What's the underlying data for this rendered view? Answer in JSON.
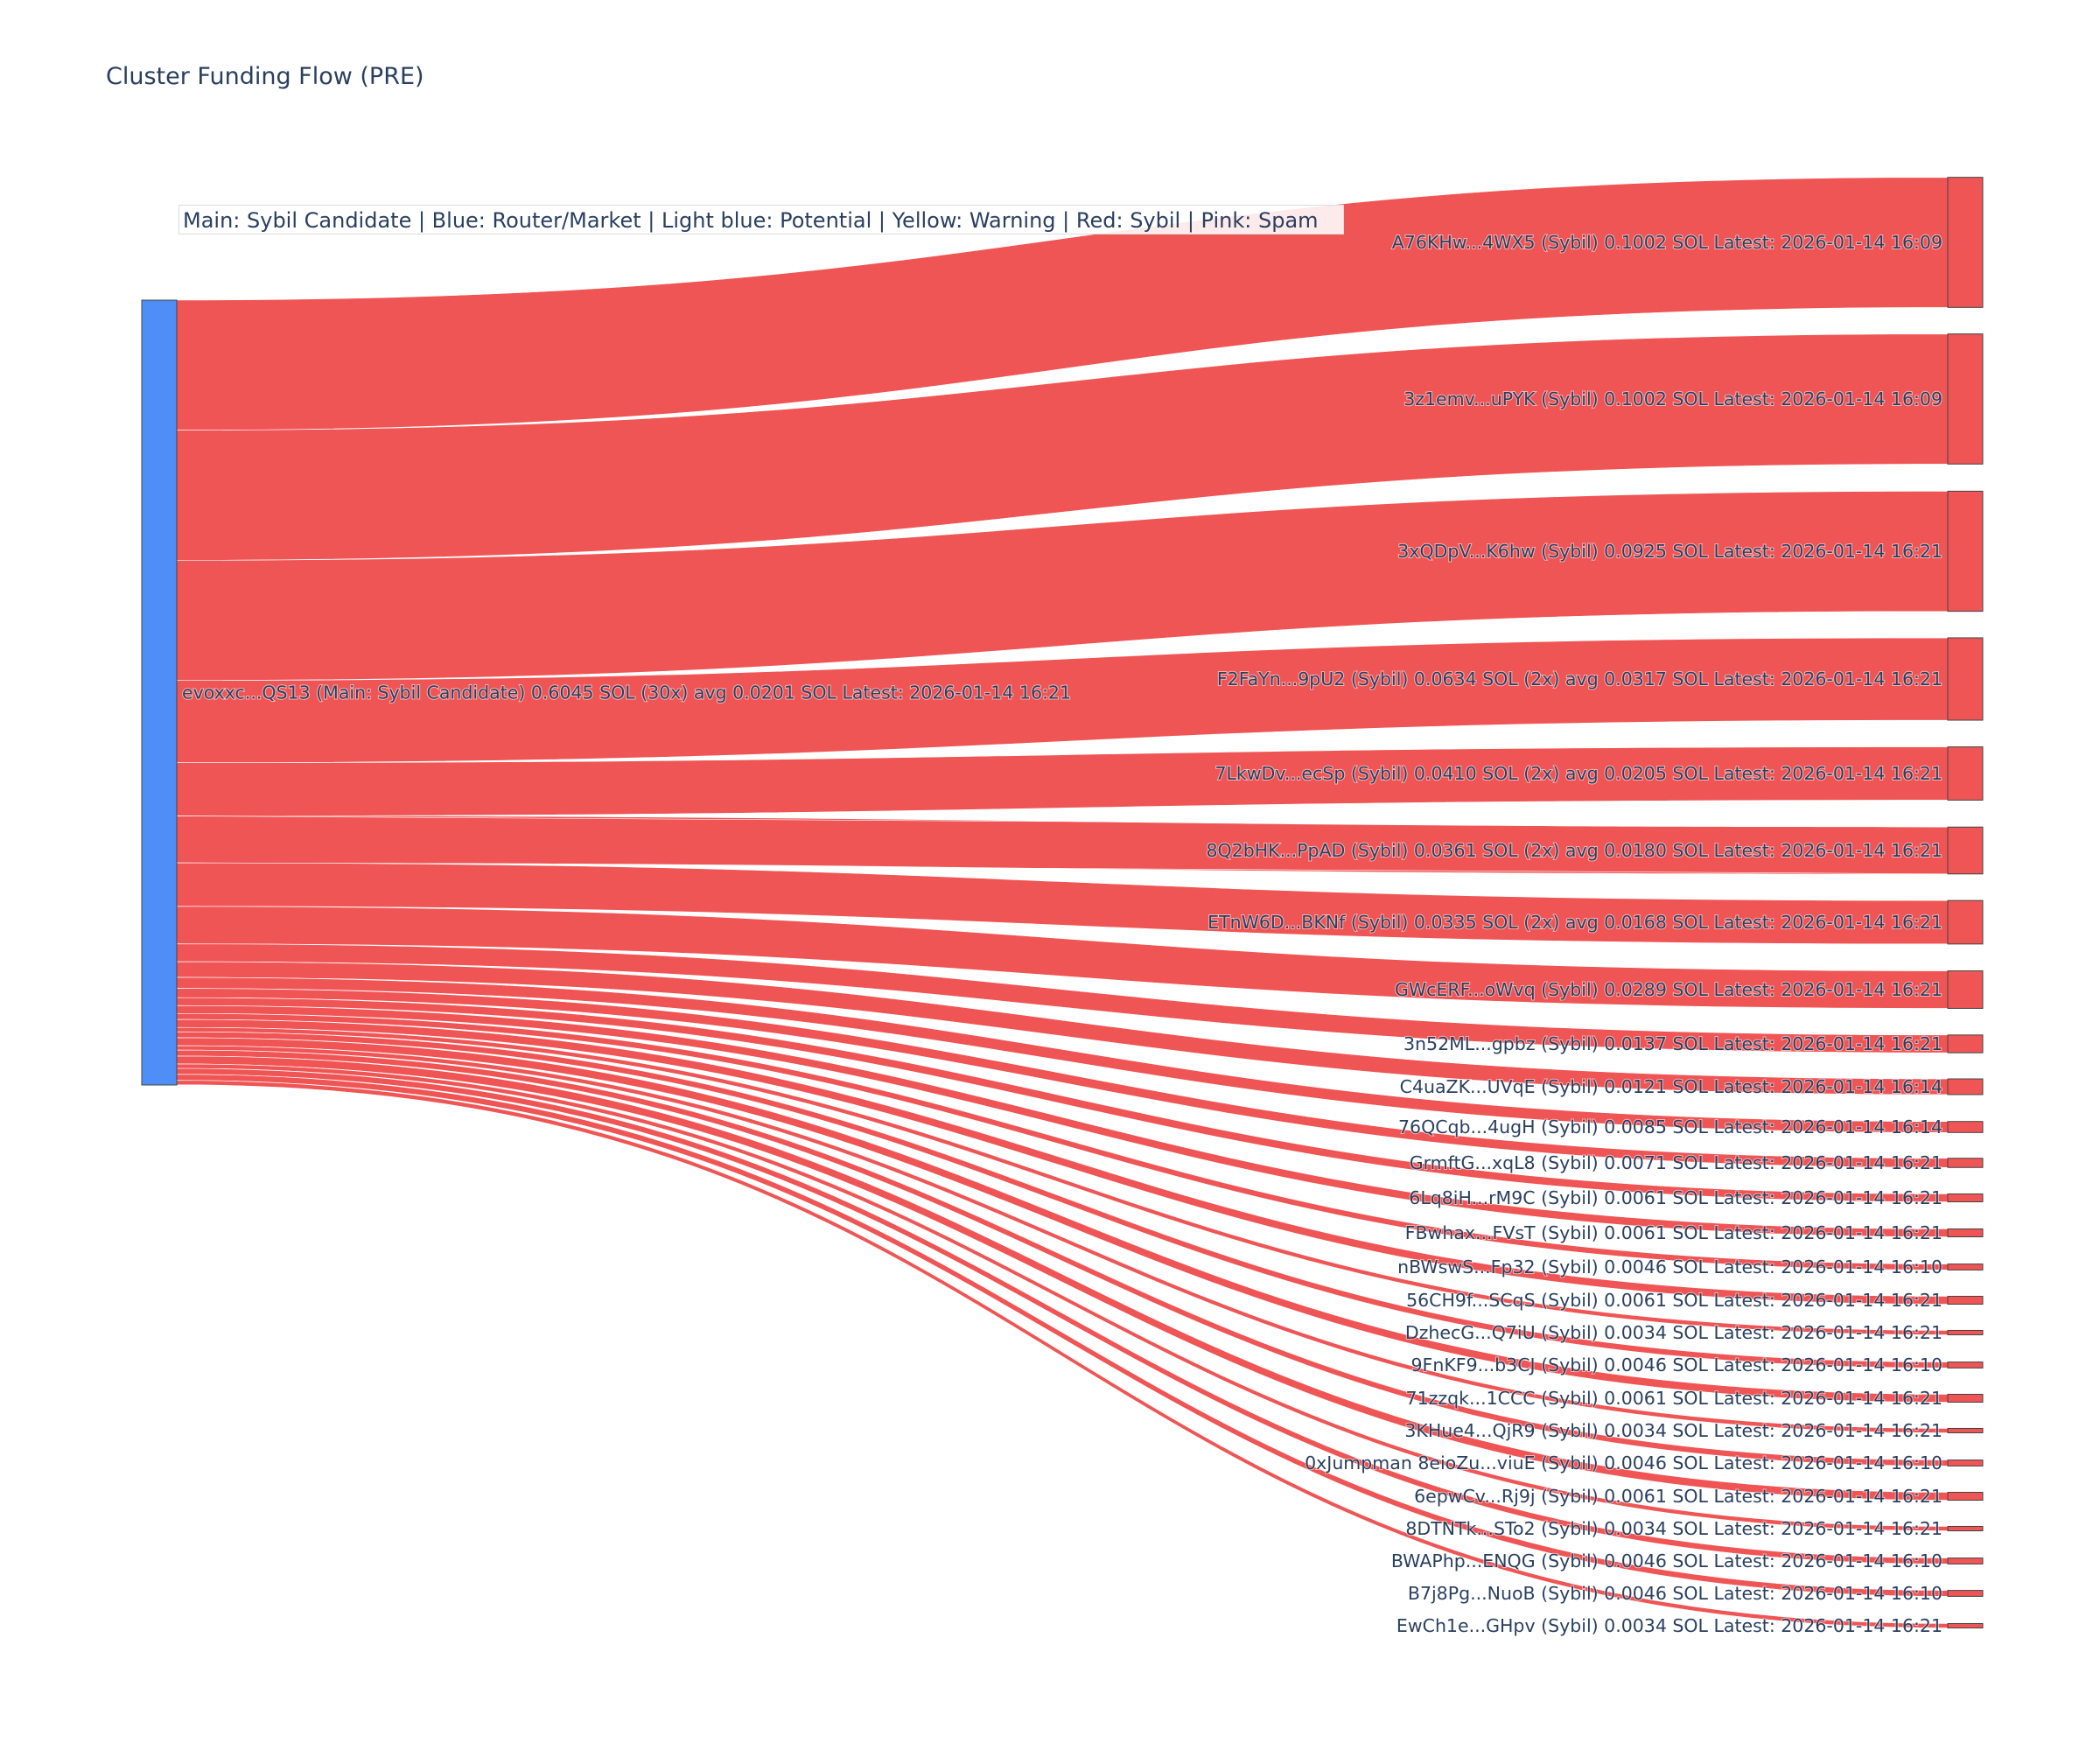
{
  "chart_data": {
    "type": "sankey",
    "title": "Cluster Funding Flow (PRE)",
    "legend_text": "Main: Sybil Candidate  |  Blue: Router/Market | Light blue: Potential | Yellow: Warning | Red: Sybil | Pink: Spam",
    "colors": {
      "source_node": "#4f8ef7",
      "link": "#ef5555",
      "target_node": "#ef5555",
      "node_border": "#444444"
    },
    "source": {
      "label": "evoxxc...QS13 (Main: Sybil Candidate) 0.6045 SOL (30x) avg 0.0201 SOL Latest: 2026-01-14 16:21",
      "value": 0.6045
    },
    "targets": [
      {
        "label": "A76KHw...4WX5 (Sybil) 0.1002 SOL Latest: 2026-01-14 16:09",
        "value": 0.1002
      },
      {
        "label": "3z1emv...uPYK (Sybil) 0.1002 SOL Latest: 2026-01-14 16:09",
        "value": 0.1002
      },
      {
        "label": "3xQDpV...K6hw (Sybil) 0.0925 SOL Latest: 2026-01-14 16:21",
        "value": 0.0925
      },
      {
        "label": "F2FaYn...9pU2 (Sybil) 0.0634 SOL (2x) avg 0.0317 SOL Latest: 2026-01-14 16:21",
        "value": 0.0634
      },
      {
        "label": "7LkwDv...ecSp (Sybil) 0.0410 SOL (2x) avg 0.0205 SOL Latest: 2026-01-14 16:21",
        "value": 0.041
      },
      {
        "label": "8Q2bHK...PpAD (Sybil) 0.0361 SOL (2x) avg 0.0180 SOL Latest: 2026-01-14 16:21",
        "value": 0.0361
      },
      {
        "label": "ETnW6D...BKNf (Sybil) 0.0335 SOL (2x) avg 0.0168 SOL Latest: 2026-01-14 16:21",
        "value": 0.0335
      },
      {
        "label": "GWcERF...oWvq (Sybil) 0.0289 SOL Latest: 2026-01-14 16:21",
        "value": 0.0289
      },
      {
        "label": "3n52ML...gpbz (Sybil) 0.0137 SOL Latest: 2026-01-14 16:21",
        "value": 0.0137
      },
      {
        "label": "C4uaZK...UVqE (Sybil) 0.0121 SOL Latest: 2026-01-14 16:14",
        "value": 0.0121
      },
      {
        "label": "76QCqb...4ugH (Sybil) 0.0085 SOL Latest: 2026-01-14 16:14",
        "value": 0.0085
      },
      {
        "label": "GrmftG...xqL8 (Sybil) 0.0071 SOL Latest: 2026-01-14 16:21",
        "value": 0.0071
      },
      {
        "label": "6Lq8iH...rM9C (Sybil) 0.0061 SOL Latest: 2026-01-14 16:21",
        "value": 0.0061
      },
      {
        "label": "FBwhax...FVsT (Sybil) 0.0061 SOL Latest: 2026-01-14 16:21",
        "value": 0.0061
      },
      {
        "label": "nBWswS...Fp32 (Sybil) 0.0046 SOL Latest: 2026-01-14 16:10",
        "value": 0.0046
      },
      {
        "label": "56CH9f...SCqS (Sybil) 0.0061 SOL Latest: 2026-01-14 16:21",
        "value": 0.0061
      },
      {
        "label": "DzhecG...Q7iU (Sybil) 0.0034 SOL Latest: 2026-01-14 16:21",
        "value": 0.0034
      },
      {
        "label": "9FnKF9...b3CJ (Sybil) 0.0046 SOL Latest: 2026-01-14 16:10",
        "value": 0.0046
      },
      {
        "label": "71zzqk...1CCC (Sybil) 0.0061 SOL Latest: 2026-01-14 16:21",
        "value": 0.0061
      },
      {
        "label": "3KHue4...QjR9 (Sybil) 0.0034 SOL Latest: 2026-01-14 16:21",
        "value": 0.0034
      },
      {
        "label": "0xJumpman 8eioZu...viuE (Sybil) 0.0046 SOL Latest: 2026-01-14 16:10",
        "value": 0.0046
      },
      {
        "label": "6epwCv...Rj9j (Sybil) 0.0061 SOL Latest: 2026-01-14 16:21",
        "value": 0.0061
      },
      {
        "label": "8DTNTk...STo2 (Sybil) 0.0034 SOL Latest: 2026-01-14 16:21",
        "value": 0.0034
      },
      {
        "label": "BWAPhp...ENQG (Sybil) 0.0046 SOL Latest: 2026-01-14 16:10",
        "value": 0.0046
      },
      {
        "label": "B7j8Pg...NuoB (Sybil) 0.0046 SOL Latest: 2026-01-14 16:10",
        "value": 0.0046
      },
      {
        "label": "EwCh1e...GHpv (Sybil) 0.0034 SOL Latest: 2026-01-14 16:21",
        "value": 0.0034
      }
    ]
  }
}
